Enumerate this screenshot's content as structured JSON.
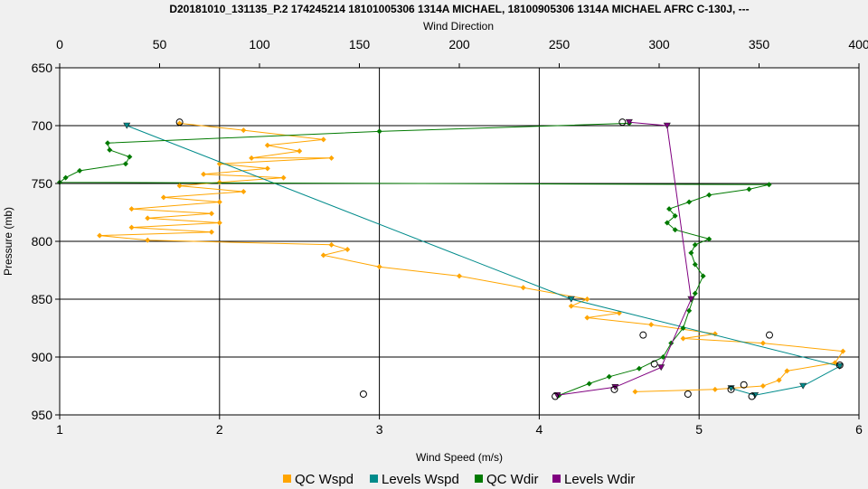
{
  "chart_data": {
    "type": "line",
    "title": "D20181010_131135_P.2 174245214 18101005306 1314A MICHAEL, 18100905306 1314A MICHAEL AFRC C-130J, ---",
    "xlabel": "Wind Speed (m/s)",
    "x2label": "Wind Direction",
    "ylabel": "Pressure (mb)",
    "xlim": [
      1,
      6
    ],
    "x2lim": [
      0,
      400
    ],
    "ylim": [
      650,
      950
    ],
    "y_inverted": true,
    "grid": true,
    "legend_position": "bottom",
    "x_ticks": [
      "1",
      "2",
      "3",
      "4",
      "5",
      "6"
    ],
    "x2_ticks": [
      "0",
      "50",
      "100",
      "150",
      "200",
      "250",
      "300",
      "350",
      "400"
    ],
    "y_ticks": [
      "650",
      "700",
      "750",
      "800",
      "850",
      "900",
      "950"
    ],
    "series": [
      {
        "name": "QC Wspd",
        "axis": "bottom",
        "color": "#ffa500",
        "points": [
          [
            1.75,
            698
          ],
          [
            2.15,
            704
          ],
          [
            2.65,
            712
          ],
          [
            2.3,
            717
          ],
          [
            2.5,
            722
          ],
          [
            2.2,
            728
          ],
          [
            2.7,
            728
          ],
          [
            2.0,
            733
          ],
          [
            2.3,
            737
          ],
          [
            1.9,
            742
          ],
          [
            2.4,
            745
          ],
          [
            2.0,
            749
          ],
          [
            1.75,
            752
          ],
          [
            2.15,
            757
          ],
          [
            1.65,
            762
          ],
          [
            2.0,
            766
          ],
          [
            1.45,
            772
          ],
          [
            1.95,
            776
          ],
          [
            1.55,
            780
          ],
          [
            2.0,
            784
          ],
          [
            1.45,
            788
          ],
          [
            1.95,
            792
          ],
          [
            1.25,
            795
          ],
          [
            1.55,
            799
          ],
          [
            2.7,
            803
          ],
          [
            2.8,
            807
          ],
          [
            2.65,
            812
          ],
          [
            3.0,
            822
          ],
          [
            3.5,
            830
          ],
          [
            3.9,
            840
          ],
          [
            4.3,
            850
          ],
          [
            4.2,
            856
          ],
          [
            4.5,
            862
          ],
          [
            4.3,
            866
          ],
          [
            4.7,
            872
          ],
          [
            5.1,
            880
          ],
          [
            4.9,
            884
          ],
          [
            5.4,
            888
          ],
          [
            5.9,
            895
          ],
          [
            5.85,
            905
          ],
          [
            5.55,
            912
          ],
          [
            5.5,
            920
          ],
          [
            5.4,
            925
          ],
          [
            5.1,
            928
          ],
          [
            4.6,
            930
          ]
        ]
      },
      {
        "name": "Levels Wspd",
        "axis": "bottom",
        "color": "#008b8b",
        "points": [
          [
            1.42,
            700
          ],
          [
            4.2,
            850
          ],
          [
            5.88,
            908
          ],
          [
            5.65,
            925
          ],
          [
            5.35,
            933
          ],
          [
            5.2,
            927
          ]
        ]
      },
      {
        "name": "QC Wdir",
        "axis": "top",
        "color": "#007a00",
        "points": [
          [
            285,
            698
          ],
          [
            160,
            705
          ],
          [
            24,
            715
          ],
          [
            25,
            721
          ],
          [
            35,
            727
          ],
          [
            33,
            733
          ],
          [
            10,
            739
          ],
          [
            3,
            745
          ],
          [
            0,
            749
          ],
          [
            355,
            751
          ],
          [
            345,
            755
          ],
          [
            325,
            760
          ],
          [
            315,
            766
          ],
          [
            305,
            772
          ],
          [
            308,
            778
          ],
          [
            304,
            784
          ],
          [
            308,
            790
          ],
          [
            325,
            798
          ],
          [
            318,
            803
          ],
          [
            316,
            810
          ],
          [
            318,
            820
          ],
          [
            322,
            830
          ],
          [
            318,
            845
          ],
          [
            315,
            860
          ],
          [
            312,
            875
          ],
          [
            306,
            888
          ],
          [
            302,
            900
          ],
          [
            290,
            910
          ],
          [
            275,
            917
          ],
          [
            265,
            923
          ],
          [
            250,
            933
          ]
        ]
      },
      {
        "name": "Levels Wdir",
        "axis": "top",
        "color": "#800080",
        "points": [
          [
            285,
            697
          ],
          [
            304,
            700
          ],
          [
            316,
            850
          ],
          [
            301,
            909
          ],
          [
            278,
            926
          ],
          [
            249,
            933
          ]
        ]
      }
    ],
    "open_circle_markers": [
      {
        "x": 1.75,
        "y": 697
      },
      {
        "x": 4.52,
        "y": 697
      },
      {
        "x": 2.9,
        "y": 932
      },
      {
        "x": 4.65,
        "y": 881
      },
      {
        "x": 5.44,
        "y": 881
      },
      {
        "x": 5.88,
        "y": 907
      },
      {
        "x": 4.72,
        "y": 906
      },
      {
        "x": 4.47,
        "y": 928
      },
      {
        "x": 4.1,
        "y": 934
      },
      {
        "x": 4.93,
        "y": 932
      },
      {
        "x": 5.2,
        "y": 928
      },
      {
        "x": 5.28,
        "y": 924
      },
      {
        "x": 5.33,
        "y": 934
      }
    ],
    "legend": [
      {
        "label": "QC Wspd",
        "color": "#ffa500"
      },
      {
        "label": "Levels Wspd",
        "color": "#008b8b"
      },
      {
        "label": "QC Wdir",
        "color": "#007a00"
      },
      {
        "label": "Levels Wdir",
        "color": "#800080"
      }
    ]
  }
}
